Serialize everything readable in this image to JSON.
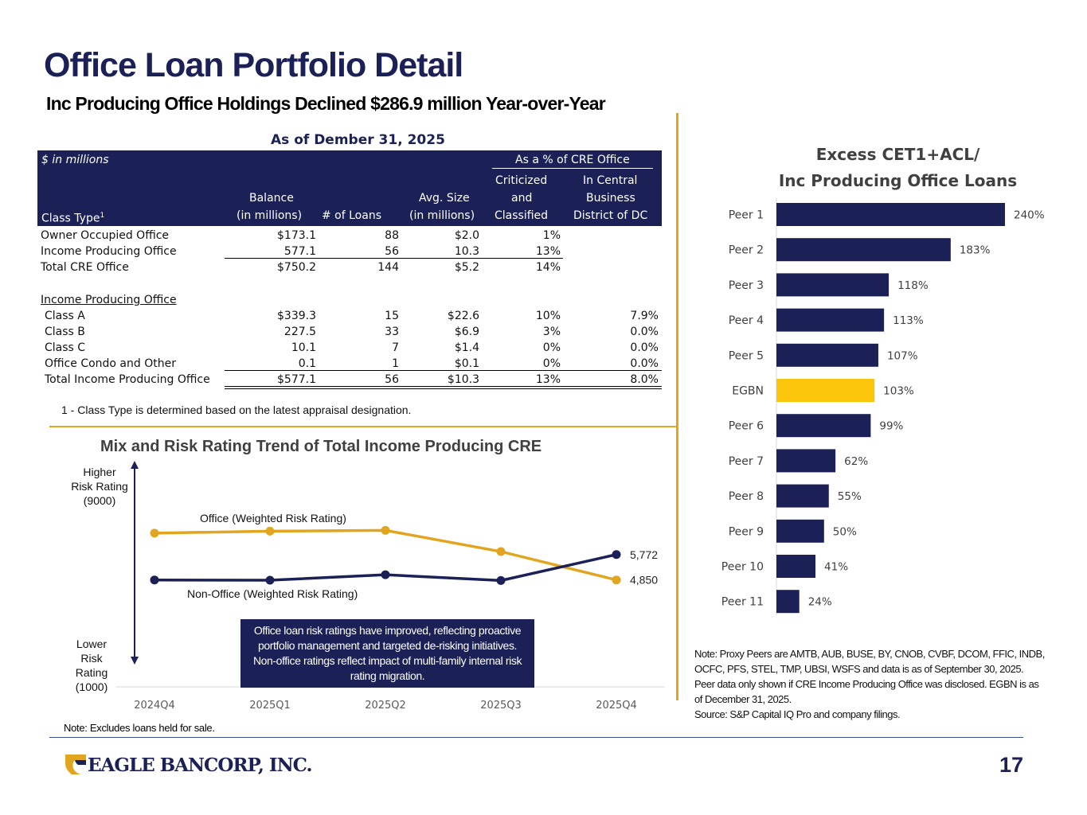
{
  "header": {
    "title": "Office Loan Portfolio Detail",
    "subtitle": "Inc Producing Office Holdings Declined $286.9 million Year-over-Year"
  },
  "table": {
    "heading": "As of Dember 31, 2025",
    "units_label": "$ in millions",
    "group_header": "As a % of CRE Office",
    "columns": {
      "class_type": "Class Type",
      "class_type_sup": "1",
      "balance_1": "Balance",
      "balance_2": "(in millions)",
      "loans": "# of Loans",
      "avg_1": "Avg. Size",
      "avg_2": "(in millions)",
      "crit_1": "Criticized",
      "crit_2": "and",
      "crit_3": "Classified",
      "cbd_1": "In Central",
      "cbd_2": "Business",
      "cbd_3": "District of DC"
    },
    "rows": [
      {
        "label": "Owner Occupied Office",
        "balance": "$173.1",
        "loans": "88",
        "avg": "$2.0",
        "crit": "1%",
        "cbd": ""
      },
      {
        "label": "Income Producing Office",
        "balance": "577.1",
        "loans": "56",
        "avg": "10.3",
        "crit": "13%",
        "cbd": ""
      },
      {
        "label": "Total CRE Office",
        "balance": "$750.2",
        "loans": "144",
        "avg": "$5.2",
        "crit": "14%",
        "cbd": ""
      },
      {
        "label": "Income Producing Office",
        "balance": "",
        "loans": "",
        "avg": "",
        "crit": "",
        "cbd": ""
      },
      {
        "label": "Class A",
        "balance": "$339.3",
        "loans": "15",
        "avg": "$22.6",
        "crit": "10%",
        "cbd": "7.9%"
      },
      {
        "label": "Class B",
        "balance": "227.5",
        "loans": "33",
        "avg": "$6.9",
        "crit": "3%",
        "cbd": "0.0%"
      },
      {
        "label": "Class C",
        "balance": "10.1",
        "loans": "7",
        "avg": "$1.4",
        "crit": "0%",
        "cbd": "0.0%"
      },
      {
        "label": "Office Condo and Other",
        "balance": "0.1",
        "loans": "1",
        "avg": "$0.1",
        "crit": "0%",
        "cbd": "0.0%"
      },
      {
        "label": "Total Income Producing Office",
        "balance": "$577.1",
        "loans": "56",
        "avg": "$10.3",
        "crit": "13%",
        "cbd": "8.0%"
      }
    ],
    "footnote": "1 - Class Type is determined based on the latest appraisal designation."
  },
  "chart_data": [
    {
      "type": "line",
      "title": "Mix and Risk Rating Trend of Total Income Producing CRE",
      "x": [
        "2024Q4",
        "2025Q1",
        "2025Q2",
        "2025Q3",
        "2025Q4"
      ],
      "ylim": [
        1000,
        9000
      ],
      "y_top_label": "Higher Risk Rating (9000)",
      "y_bottom_label": "Lower Risk Rating (1000)",
      "series": [
        {
          "name": "Office (Weighted Risk Rating)",
          "color": "#e2a51f",
          "values": [
            6550,
            6620,
            6650,
            5880,
            4850
          ],
          "end_label": "4,850"
        },
        {
          "name": "Non-Office (Weighted Risk Rating)",
          "color": "#1b2157",
          "values": [
            4850,
            4840,
            5040,
            4830,
            5772
          ],
          "end_label": "5,772"
        }
      ],
      "callout": "Office loan risk ratings have improved, reflecting proactive portfolio management and targeted de-risking initiatives. Non-office ratings reflect impact of multi-family internal risk rating migration."
    },
    {
      "type": "bar",
      "orientation": "horizontal",
      "title": "Excess CET1+ACL/ Inc Producing Office Loans",
      "categories": [
        "Peer 1",
        "Peer 2",
        "Peer 3",
        "Peer 4",
        "Peer 5",
        "EGBN",
        "Peer 6",
        "Peer 7",
        "Peer 8",
        "Peer 9",
        "Peer 10",
        "Peer 11"
      ],
      "values": [
        240,
        183,
        118,
        113,
        107,
        103,
        99,
        62,
        55,
        50,
        41,
        24
      ],
      "labels": [
        "240%",
        "183%",
        "118%",
        "113%",
        "107%",
        "103%",
        "99%",
        "62%",
        "55%",
        "50%",
        "41%",
        "24%"
      ],
      "unit": "%",
      "colors": {
        "default": "#1b2157",
        "highlight": "#fbc50c"
      },
      "highlight": "EGBN"
    }
  ],
  "chart_titles": {
    "line_1": "Mix and Risk Rating Trend of Total Income Producing CRE",
    "bar_1": "Excess CET1+ACL/",
    "bar_2": "Inc Producing Office Loans"
  },
  "axis_notes": {
    "higher": [
      "Higher",
      "Risk Rating",
      "(9000)"
    ],
    "lower": [
      "Lower",
      "Risk",
      "Rating",
      "(1000)"
    ]
  },
  "notes": {
    "left": "Note: Excludes loans held for sale.",
    "right": "Note: Proxy Peers are AMTB, AUB, BUSE, BY, CNOB, CVBF, DCOM, FFIC, INDB, OCFC, PFS, STEL, TMP, UBSI, WSFS and data is as of September 30, 2025.  Peer data only shown if CRE Income Producing Office was disclosed. EGBN is as of December 31, 2025.",
    "source": "Source: S&P Capital IQ Pro and company filings."
  },
  "footer": {
    "logo_text": "EAGLE BANCORP, INC.",
    "page_number": "17"
  }
}
